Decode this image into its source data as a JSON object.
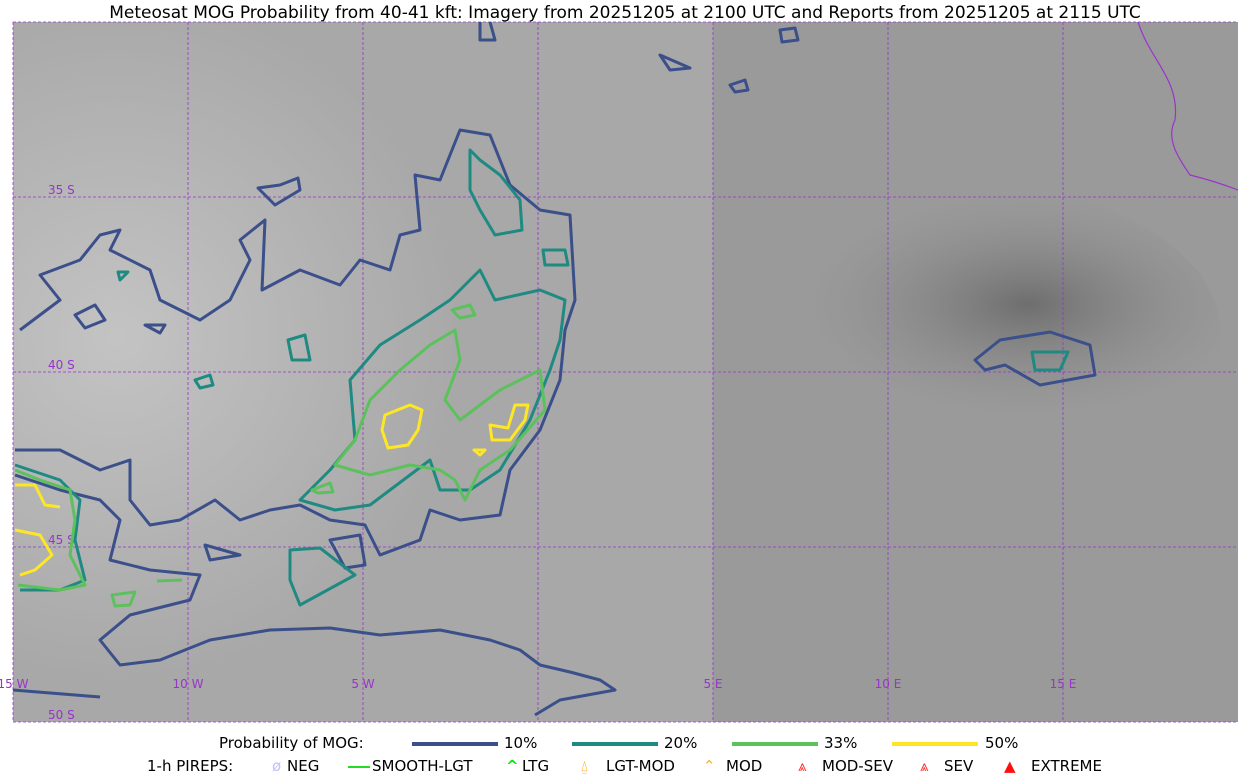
{
  "title": "Meteosat MOG Probability from 40-41 kft: Imagery from 20251205 at 2100 UTC and Reports from 20251205 at 2115 UTC",
  "map": {
    "lat_labels": [
      "35 S",
      "40 S",
      "45 S",
      "50 S"
    ],
    "lon_labels": [
      "15 W",
      "10 W",
      "5 W",
      "5 E",
      "10 E",
      "15 E"
    ],
    "grid_color": "#9933cc",
    "coastline_color": "#9933cc"
  },
  "legend": {
    "probability_title": "Probability of MOG:",
    "probability_levels": [
      {
        "label": "10%",
        "color": "#3b4f8a"
      },
      {
        "label": "20%",
        "color": "#1f8a82"
      },
      {
        "label": "33%",
        "color": "#5cc15c"
      },
      {
        "label": "50%",
        "color": "#fde725"
      }
    ],
    "pireps_title": "1-h PIREPS:",
    "pireps": [
      {
        "label": "NEG",
        "icon": "neg-circle-icon",
        "color": "#c0c0ff"
      },
      {
        "label": "SMOOTH-LGT",
        "icon": "line-icon",
        "color": "#22dd22"
      },
      {
        "label": "LTG",
        "icon": "caret-icon",
        "color": "#00ee00"
      },
      {
        "label": "LGT-MOD",
        "icon": "caret-bar-icon",
        "color": "#ffb020"
      },
      {
        "label": "MOD",
        "icon": "caret-icon",
        "color": "#ffb020"
      },
      {
        "label": "MOD-SEV",
        "icon": "double-caret-bar-icon",
        "color": "#ff3030"
      },
      {
        "label": "SEV",
        "icon": "double-caret-icon",
        "color": "#ff3030"
      },
      {
        "label": "EXTREME",
        "icon": "filled-triangle-icon",
        "color": "#ff1010"
      }
    ]
  }
}
